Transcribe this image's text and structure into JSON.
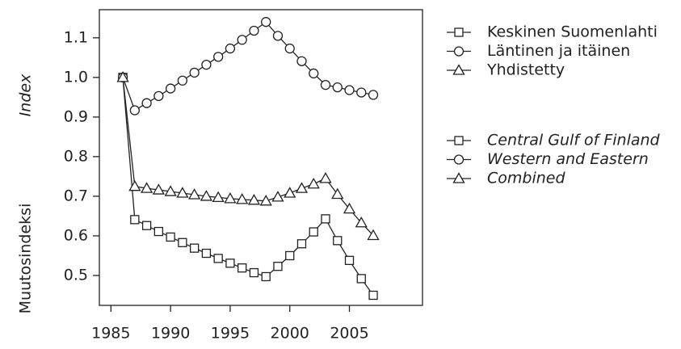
{
  "chart_data": {
    "type": "line",
    "y_label": "Muutosindeksi",
    "y_label_italic": "Index",
    "x": [
      1986,
      1987,
      1988,
      1989,
      1990,
      1991,
      1992,
      1993,
      1994,
      1995,
      1996,
      1997,
      1998,
      1999,
      2000,
      2001,
      2002,
      2003,
      2004,
      2005,
      2006,
      2007
    ],
    "series": [
      {
        "name": "Keskinen Suomenlahti",
        "name_en": "Central Gulf of Finland",
        "marker": "square",
        "color": "#222222",
        "values": [
          1.0,
          0.641,
          0.626,
          0.611,
          0.597,
          0.583,
          0.569,
          0.556,
          0.543,
          0.531,
          0.519,
          0.507,
          0.497,
          0.523,
          0.55,
          0.58,
          0.61,
          0.643,
          0.588,
          0.538,
          0.492,
          0.45
        ]
      },
      {
        "name": "Läntinen ja itäinen",
        "name_en": "Western and Eastern",
        "marker": "circle",
        "color": "#222222",
        "values": [
          1.0,
          0.917,
          0.935,
          0.953,
          0.972,
          0.992,
          1.012,
          1.032,
          1.052,
          1.073,
          1.095,
          1.118,
          1.14,
          1.105,
          1.073,
          1.041,
          1.01,
          0.981,
          0.975,
          0.968,
          0.962,
          0.956
        ]
      },
      {
        "name": "Yhdistetty",
        "name_en": "Combined",
        "marker": "triangle",
        "color": "#222222",
        "values": [
          1.0,
          0.725,
          0.72,
          0.716,
          0.712,
          0.708,
          0.704,
          0.7,
          0.697,
          0.694,
          0.692,
          0.69,
          0.688,
          0.698,
          0.708,
          0.72,
          0.731,
          0.745,
          0.705,
          0.668,
          0.633,
          0.601
        ]
      }
    ],
    "xlim": [
      1984.03,
      2011.13
    ],
    "xticks": [
      1985,
      1990,
      1995,
      2000,
      2005
    ],
    "ylim": [
      0.4245,
      1.171
    ],
    "yticks": [
      0.5,
      0.6,
      0.7,
      0.8,
      0.9,
      {
        "value": 1.0,
        "label": "1.0"
      },
      1.1
    ],
    "grid": false
  }
}
